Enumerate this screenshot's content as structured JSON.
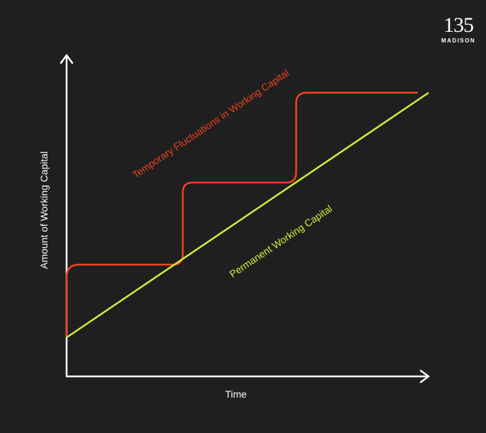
{
  "logo": {
    "number": "135",
    "name": "MADISON"
  },
  "diagram": {
    "y_axis_label": "Amount of Working Capital",
    "x_axis_label": "Time",
    "temporary_label": "Temporary Fluctuations in Working Capital",
    "permanent_label": "Permanent Working Capital"
  }
}
